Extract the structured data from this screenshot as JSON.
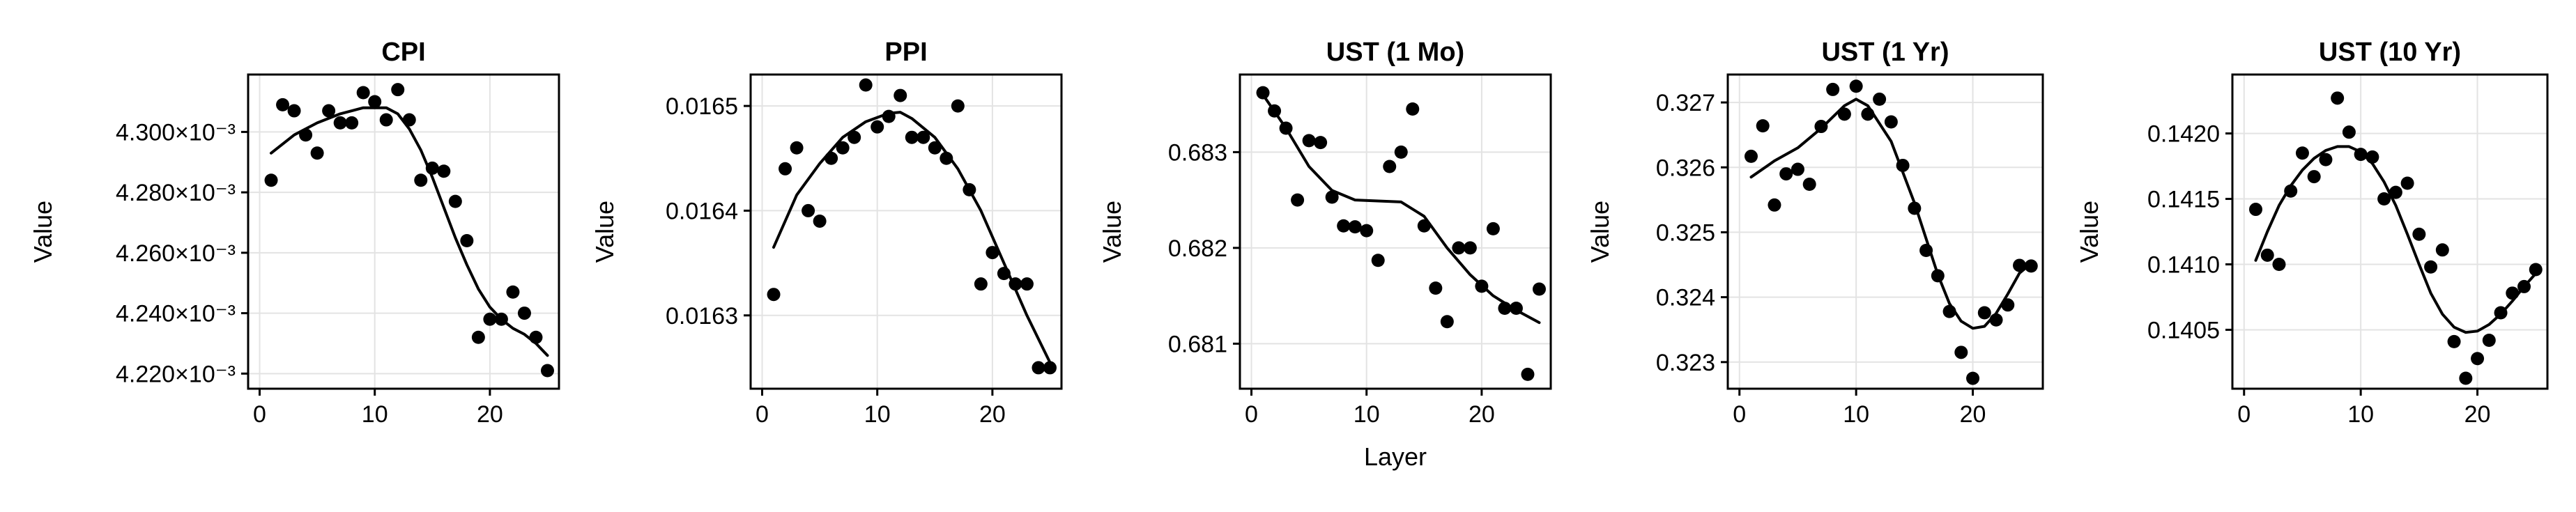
{
  "chart_data": [
    {
      "type": "scatter",
      "title": "CPI",
      "xlabel": "",
      "ylabel": "Value",
      "xlim": [
        -1,
        26
      ],
      "ylim": [
        0.004215,
        0.004319
      ],
      "x_ticks": [
        0,
        10,
        20
      ],
      "x_tick_labels": [
        "0",
        "10",
        "20"
      ],
      "y_ticks": [
        0.00422,
        0.00424,
        0.00426,
        0.00428,
        0.0043
      ],
      "y_tick_labels": [
        "4.220×10⁻³",
        "4.240×10⁻³",
        "4.260×10⁻³",
        "4.280×10⁻³",
        "4.300×10⁻³"
      ],
      "grid": true,
      "points": {
        "x": [
          1,
          2,
          3,
          4,
          5,
          6,
          7,
          8,
          9,
          10,
          11,
          12,
          13,
          14,
          15,
          16,
          17,
          18,
          19,
          20,
          21,
          22,
          23,
          24,
          25
        ],
        "y": [
          0.004284,
          0.004309,
          0.004307,
          0.004299,
          0.004293,
          0.004307,
          0.004303,
          0.004303,
          0.004313,
          0.00431,
          0.004304,
          0.004314,
          0.004304,
          0.004284,
          0.004288,
          0.004287,
          0.004277,
          0.004264,
          0.004232,
          0.004238,
          0.004238,
          0.004247,
          0.00424,
          0.004232,
          0.004221
        ]
      },
      "fit_line": {
        "x": [
          1,
          3,
          5,
          7,
          9,
          11,
          12,
          13,
          14,
          15,
          16,
          17,
          18,
          19,
          20,
          21,
          22,
          23,
          24,
          25
        ],
        "y": [
          0.004293,
          0.004299,
          0.004303,
          0.004306,
          0.004308,
          0.004308,
          0.004306,
          0.004301,
          0.004294,
          0.004285,
          0.004275,
          0.004265,
          0.004256,
          0.004248,
          0.004242,
          0.004238,
          0.004235,
          0.004233,
          0.00423,
          0.004226
        ]
      }
    },
    {
      "type": "scatter",
      "title": "PPI",
      "xlabel": "",
      "ylabel": "Value",
      "xlim": [
        -1,
        26
      ],
      "ylim": [
        0.01623,
        0.01653
      ],
      "x_ticks": [
        0,
        10,
        20
      ],
      "x_tick_labels": [
        "0",
        "10",
        "20"
      ],
      "y_ticks": [
        0.0163,
        0.0164,
        0.0165
      ],
      "y_tick_labels": [
        "0.0163",
        "0.0164",
        "0.0165"
      ],
      "grid": true,
      "points": {
        "x": [
          1,
          2,
          3,
          4,
          5,
          6,
          7,
          8,
          9,
          10,
          11,
          12,
          13,
          14,
          15,
          16,
          17,
          18,
          19,
          20,
          21,
          22,
          23,
          24,
          25
        ],
        "y": [
          0.01632,
          0.01644,
          0.01646,
          0.0164,
          0.01639,
          0.01645,
          0.01646,
          0.01647,
          0.01652,
          0.01648,
          0.01649,
          0.01651,
          0.01647,
          0.01647,
          0.01646,
          0.01645,
          0.0165,
          0.01642,
          0.01633,
          0.01636,
          0.01634,
          0.01633,
          0.01633,
          0.01625,
          0.01625
        ]
      },
      "fit_line": {
        "x": [
          1,
          3,
          5,
          7,
          9,
          11,
          12,
          13,
          15,
          17,
          19,
          21,
          23,
          25
        ],
        "y": [
          0.016365,
          0.016415,
          0.016445,
          0.01647,
          0.016485,
          0.016493,
          0.016494,
          0.016488,
          0.01647,
          0.01644,
          0.0164,
          0.01635,
          0.0163,
          0.016255
        ]
      }
    },
    {
      "type": "scatter",
      "title": "UST (1 Mo)",
      "xlabel": "Layer",
      "ylabel": "Value",
      "xlim": [
        -1,
        26
      ],
      "ylim": [
        0.68053,
        0.68381
      ],
      "x_ticks": [
        0,
        10,
        20
      ],
      "x_tick_labels": [
        "0",
        "10",
        "20"
      ],
      "y_ticks": [
        0.681,
        0.682,
        0.683
      ],
      "y_tick_labels": [
        "0.681",
        "0.682",
        "0.683"
      ],
      "grid": true,
      "points": {
        "x": [
          1,
          2,
          3,
          4,
          5,
          6,
          7,
          8,
          9,
          10,
          11,
          12,
          13,
          14,
          15,
          16,
          17,
          18,
          19,
          20,
          21,
          22,
          23,
          24,
          25
        ],
        "y": [
          0.68362,
          0.68343,
          0.68325,
          0.6825,
          0.68312,
          0.6831,
          0.68253,
          0.68223,
          0.68222,
          0.68218,
          0.68187,
          0.68285,
          0.683,
          0.68345,
          0.68223,
          0.68158,
          0.68123,
          0.682,
          0.682,
          0.6816,
          0.6822,
          0.68137,
          0.68137,
          0.68068,
          0.68157
        ]
      },
      "fit_line": {
        "x": [
          1,
          3,
          5,
          7,
          9,
          11,
          13,
          15,
          17,
          19,
          21,
          23,
          25
        ],
        "y": [
          0.6836,
          0.68325,
          0.68285,
          0.6826,
          0.6825,
          0.68249,
          0.68248,
          0.68233,
          0.682,
          0.68172,
          0.6815,
          0.68135,
          0.68122
        ]
      }
    },
    {
      "type": "scatter",
      "title": "UST (1 Yr)",
      "xlabel": "",
      "ylabel": "Value",
      "xlim": [
        -1,
        26
      ],
      "ylim": [
        0.32259,
        0.32743
      ],
      "x_ticks": [
        0,
        10,
        20
      ],
      "x_tick_labels": [
        "0",
        "10",
        "20"
      ],
      "y_ticks": [
        0.323,
        0.324,
        0.325,
        0.326,
        0.327
      ],
      "y_tick_labels": [
        "0.323",
        "0.324",
        "0.325",
        "0.326",
        "0.327"
      ],
      "grid": true,
      "points": {
        "x": [
          1,
          2,
          3,
          4,
          5,
          6,
          7,
          8,
          9,
          10,
          11,
          12,
          13,
          14,
          15,
          16,
          17,
          18,
          19,
          20,
          21,
          22,
          23,
          24,
          25
        ],
        "y": [
          0.32617,
          0.32664,
          0.32542,
          0.3259,
          0.32597,
          0.32574,
          0.32663,
          0.3272,
          0.32682,
          0.32725,
          0.32682,
          0.32705,
          0.3267,
          0.32603,
          0.32537,
          0.32472,
          0.32433,
          0.32378,
          0.32315,
          0.32275,
          0.32376,
          0.32365,
          0.32388,
          0.32449,
          0.32448
        ]
      },
      "fit_line": {
        "x": [
          1,
          3,
          5,
          7,
          9,
          10,
          11,
          13,
          15,
          16,
          17,
          18,
          19,
          20,
          21,
          22,
          23,
          24,
          25
        ],
        "y": [
          0.32585,
          0.3261,
          0.3263,
          0.3266,
          0.32695,
          0.32705,
          0.32695,
          0.3264,
          0.32545,
          0.3249,
          0.32435,
          0.3239,
          0.32363,
          0.32352,
          0.32355,
          0.32375,
          0.32405,
          0.32437,
          0.32452
        ]
      }
    },
    {
      "type": "scatter",
      "title": "UST (10 Yr)",
      "xlabel": "",
      "ylabel": "Value",
      "xlim": [
        -1,
        26
      ],
      "ylim": [
        0.14005,
        0.14245
      ],
      "x_ticks": [
        0,
        10,
        20
      ],
      "x_tick_labels": [
        "0",
        "10",
        "20"
      ],
      "y_ticks": [
        0.1405,
        0.141,
        0.1415,
        0.142
      ],
      "y_tick_labels": [
        "0.1405",
        "0.1410",
        "0.1415",
        "0.1420"
      ],
      "grid": true,
      "points": {
        "x": [
          1,
          2,
          3,
          4,
          5,
          6,
          7,
          8,
          9,
          10,
          11,
          12,
          13,
          14,
          15,
          16,
          17,
          18,
          19,
          20,
          21,
          22,
          23,
          24,
          25
        ],
        "y": [
          0.14142,
          0.14107,
          0.141,
          0.14156,
          0.14185,
          0.14167,
          0.1418,
          0.14227,
          0.14201,
          0.14184,
          0.14182,
          0.1415,
          0.14155,
          0.14162,
          0.14123,
          0.14098,
          0.14111,
          0.14041,
          0.14013,
          0.14028,
          0.14042,
          0.14063,
          0.14078,
          0.14083,
          0.14096
        ]
      },
      "fit_line": {
        "x": [
          1,
          2,
          3,
          4,
          5,
          6,
          7,
          8,
          9,
          10,
          11,
          12,
          13,
          14,
          15,
          16,
          17,
          18,
          19,
          20,
          21,
          22,
          23,
          24,
          25
        ],
        "y": [
          0.14103,
          0.14125,
          0.14145,
          0.1416,
          0.14172,
          0.14181,
          0.14187,
          0.1419,
          0.1419,
          0.14186,
          0.14177,
          0.14163,
          0.14145,
          0.14123,
          0.141,
          0.14078,
          0.14062,
          0.14052,
          0.14048,
          0.14049,
          0.14054,
          0.14062,
          0.14072,
          0.14083,
          0.14093
        ]
      }
    }
  ]
}
